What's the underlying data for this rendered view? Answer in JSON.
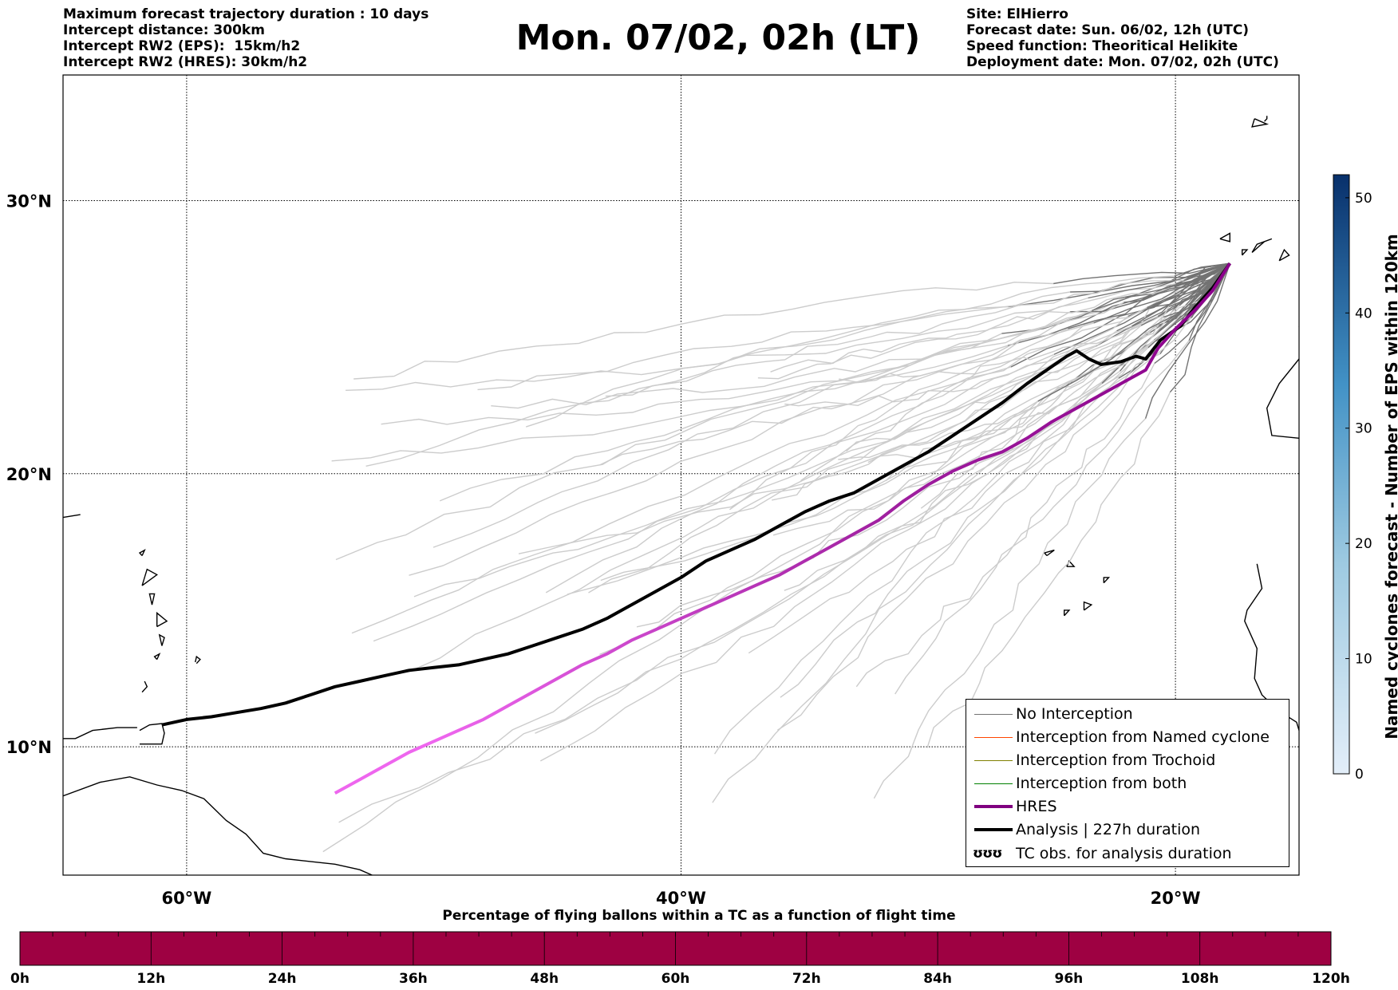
{
  "header": {
    "left": [
      "Maximum forecast trajectory duration : 10 days",
      "Intercept distance: 300km",
      "Intercept RW2 (EPS):  15km/h2",
      "Intercept RW2 (HRES): 30km/h2"
    ],
    "title": "Mon. 07/02, 02h (LT)",
    "right": [
      "Site: ElHierro",
      "Forecast date: Sun. 06/02, 12h (UTC)",
      "Speed function: Theoritical Helikite",
      "Deployment date: Mon. 07/02, 02h (UTC)"
    ]
  },
  "map": {
    "lat_labels": [
      "30°N",
      "20°N",
      "10°N"
    ],
    "lon_labels": [
      "60°W",
      "40°W",
      "20°W"
    ],
    "lat_values": [
      30,
      20,
      10
    ],
    "lon_values": [
      -60,
      -40,
      -20
    ],
    "lon_range": [
      -65,
      -15
    ],
    "lat_range": [
      5.3,
      34.6
    ],
    "colors": {
      "coast": "#000000",
      "eps_light": "#cccccc",
      "eps_dark": "#737373",
      "hres_start": "#8b008b",
      "hres_end": "#ee66ee",
      "analysis": "#000000"
    },
    "analysis_track": [
      [
        -17.8,
        27.7
      ],
      [
        -18.5,
        26.8
      ],
      [
        -19.2,
        26.1
      ],
      [
        -19.8,
        25.4
      ],
      [
        -20.6,
        24.9
      ],
      [
        -21.2,
        24.2
      ],
      [
        -21.6,
        24.3
      ],
      [
        -22.2,
        24.1
      ],
      [
        -23.0,
        24.0
      ],
      [
        -23.5,
        24.2
      ],
      [
        -24.0,
        24.5
      ],
      [
        -24.4,
        24.3
      ],
      [
        -25.2,
        23.8
      ],
      [
        -26.0,
        23.3
      ],
      [
        -27.0,
        22.6
      ],
      [
        -28.0,
        22.0
      ],
      [
        -29.0,
        21.4
      ],
      [
        -30.0,
        20.8
      ],
      [
        -31.0,
        20.3
      ],
      [
        -32.0,
        19.8
      ],
      [
        -33.0,
        19.3
      ],
      [
        -34.0,
        19.0
      ],
      [
        -35.0,
        18.6
      ],
      [
        -36.0,
        18.1
      ],
      [
        -37.0,
        17.6
      ],
      [
        -38.0,
        17.2
      ],
      [
        -39.0,
        16.8
      ],
      [
        -40.0,
        16.2
      ],
      [
        -41.0,
        15.7
      ],
      [
        -42.0,
        15.2
      ],
      [
        -43.0,
        14.7
      ],
      [
        -44.0,
        14.3
      ],
      [
        -45.0,
        14.0
      ],
      [
        -46.0,
        13.7
      ],
      [
        -47.0,
        13.4
      ],
      [
        -48.0,
        13.2
      ],
      [
        -49.0,
        13.0
      ],
      [
        -50.0,
        12.9
      ],
      [
        -51.0,
        12.8
      ],
      [
        -52.0,
        12.6
      ],
      [
        -53.0,
        12.4
      ],
      [
        -54.0,
        12.2
      ],
      [
        -55.0,
        11.9
      ],
      [
        -56.0,
        11.6
      ],
      [
        -57.0,
        11.4
      ],
      [
        -58.0,
        11.25
      ],
      [
        -59.0,
        11.1
      ],
      [
        -60.0,
        11.0
      ],
      [
        -61.0,
        10.8
      ]
    ],
    "hres_track": [
      [
        -17.8,
        27.7
      ],
      [
        -18.5,
        26.7
      ],
      [
        -19.2,
        26.0
      ],
      [
        -20.0,
        25.3
      ],
      [
        -20.7,
        24.6
      ],
      [
        -21.2,
        23.8
      ],
      [
        -22.0,
        23.4
      ],
      [
        -23.0,
        22.9
      ],
      [
        -24.0,
        22.4
      ],
      [
        -25.0,
        21.9
      ],
      [
        -26.0,
        21.3
      ],
      [
        -27.0,
        20.8
      ],
      [
        -28.0,
        20.5
      ],
      [
        -29.0,
        20.1
      ],
      [
        -30.0,
        19.6
      ],
      [
        -31.0,
        19.0
      ],
      [
        -32.0,
        18.3
      ],
      [
        -33.0,
        17.8
      ],
      [
        -34.0,
        17.3
      ],
      [
        -35.0,
        16.8
      ],
      [
        -36.0,
        16.3
      ],
      [
        -37.0,
        15.9
      ],
      [
        -38.0,
        15.5
      ],
      [
        -39.0,
        15.1
      ],
      [
        -40.0,
        14.7
      ],
      [
        -41.0,
        14.3
      ],
      [
        -42.0,
        13.9
      ],
      [
        -43.0,
        13.4
      ],
      [
        -44.0,
        13.0
      ],
      [
        -45.0,
        12.5
      ],
      [
        -46.0,
        12.0
      ],
      [
        -47.0,
        11.5
      ],
      [
        -48.0,
        11.0
      ],
      [
        -49.0,
        10.6
      ],
      [
        -50.0,
        10.2
      ],
      [
        -51.0,
        9.8
      ],
      [
        -52.0,
        9.3
      ],
      [
        -53.0,
        8.8
      ],
      [
        -54.0,
        8.3
      ]
    ]
  },
  "legend": {
    "items": [
      {
        "label": "No Interception",
        "color": "#737373",
        "width": 1
      },
      {
        "label": "Interception from Named cyclone",
        "color": "#ff4500",
        "width": 1
      },
      {
        "label": "Interception from Trochoid",
        "color": "#808000",
        "width": 1
      },
      {
        "label": "Interception from both",
        "color": "#008000",
        "width": 1
      },
      {
        "label": "HRES",
        "color": "#800080",
        "width": 4
      },
      {
        "label": "Analysis | 227h duration",
        "color": "#000000",
        "width": 4
      },
      {
        "label": "TC obs. for analysis duration",
        "glyph": "ʊʊʊ"
      }
    ]
  },
  "colorbar": {
    "label": "Named cyclones forecast - Number of EPS within 120km",
    "ticks": [
      "0",
      "10",
      "20",
      "30",
      "40",
      "50"
    ],
    "tick_values": [
      0,
      10,
      20,
      30,
      40,
      50
    ],
    "max": 52,
    "color_low": "#e3eef9",
    "color_high": "#08306b"
  },
  "timebar": {
    "caption": "Percentage of flying ballons within a TC as a function of flight time",
    "ticks": [
      "0h",
      "12h",
      "24h",
      "36h",
      "48h",
      "60h",
      "72h",
      "84h",
      "96h",
      "108h",
      "120h"
    ],
    "fill_color": "#9e0142",
    "percentage": 0
  }
}
